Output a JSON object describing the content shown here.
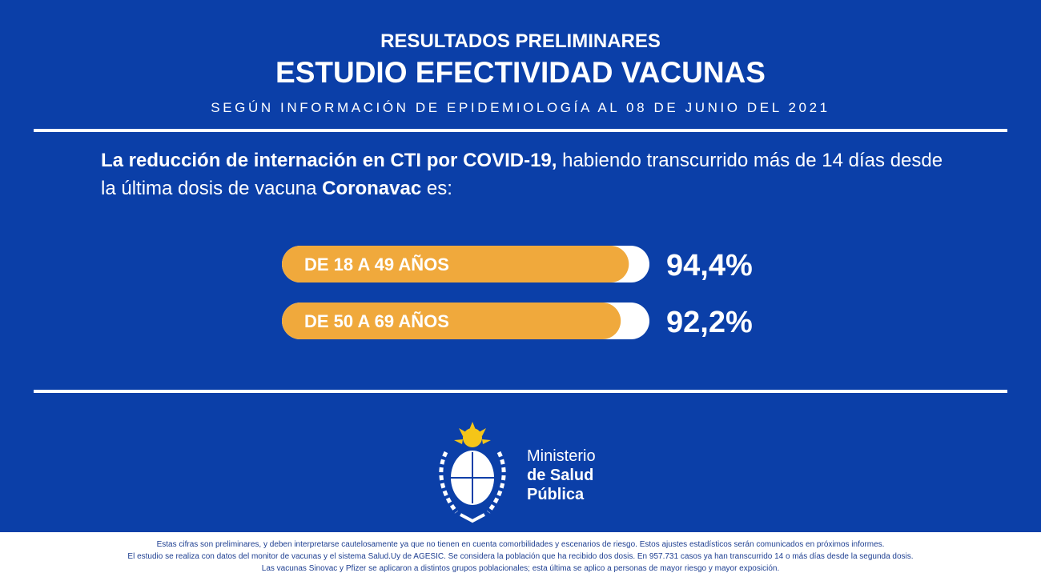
{
  "header": {
    "kicker": "RESULTADOS PRELIMINARES",
    "title": "ESTUDIO EFECTIVIDAD VACUNAS",
    "subtitle": "SEGÚN INFORMACIÓN DE EPIDEMIOLOGÍA AL 08 DE JUNIO DEL 2021"
  },
  "intro": [
    {
      "text": "La reducción de internación en CTI por COVID-19,",
      "bold": true
    },
    {
      "text": " habiendo transcurrido más de 14 días desde la última dosis de vacuna ",
      "bold": false
    },
    {
      "text": "Coronavac",
      "bold": true
    },
    {
      "text": " es:",
      "bold": false
    }
  ],
  "chart_data": {
    "type": "bar",
    "orientation": "horizontal",
    "categories": [
      "DE 18 A 49 AÑOS",
      "DE 50 A 69 AÑOS"
    ],
    "values": [
      94.4,
      92.2
    ],
    "value_labels": [
      "94,4%",
      "92,2%"
    ],
    "xlim": [
      0,
      100
    ],
    "color": "#f0a93c",
    "track_color": "#ffffff"
  },
  "logo": {
    "lines": [
      "Ministerio",
      "de Salud",
      "Pública"
    ]
  },
  "footer": {
    "lines": [
      "Estas cifras son preliminares, y deben interpretarse cautelosamente ya que no tienen en cuenta comorbilidades y escenarios de riesgo. Estos ajustes estadísticos serán comunicados en próximos informes.",
      "El estudio se realiza con datos del monitor de vacunas y el sistema Salud.Uy de AGESIC. Se considera la población que ha recibido dos dosis. En 957.731 casos ya han transcurrido 14 o más días desde la segunda dosis.",
      "Las vacunas Sinovac y Pfizer se aplicaron a distintos grupos poblacionales; esta última se aplico a personas de mayor riesgo y mayor exposición."
    ]
  }
}
